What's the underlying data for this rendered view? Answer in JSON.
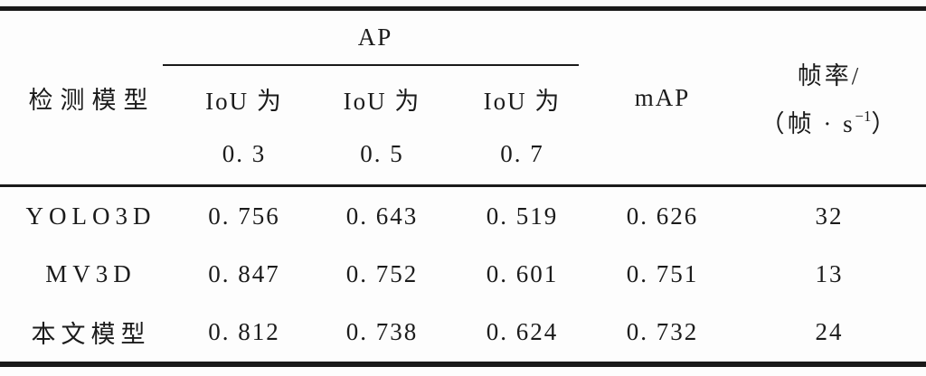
{
  "table": {
    "header": {
      "model": "检测模型",
      "ap_group": "AP",
      "iou_cols": [
        {
          "line1": "IoU 为",
          "line2": "0. 3"
        },
        {
          "line1": "IoU 为",
          "line2": "0. 5"
        },
        {
          "line1": "IoU 为",
          "line2": "0. 7"
        }
      ],
      "map": "mAP",
      "fps": {
        "line1": "帧率/",
        "unit_open": "（帧 · s",
        "unit_sup": "−1",
        "unit_close": "）"
      }
    },
    "rows": [
      {
        "model": "YOLO3D",
        "iou03": "0. 756",
        "iou05": "0. 643",
        "iou07": "0. 519",
        "map": "0. 626",
        "fps": "32"
      },
      {
        "model": "MV3D",
        "iou03": "0. 847",
        "iou05": "0. 752",
        "iou07": "0. 601",
        "map": "0. 751",
        "fps": "13"
      },
      {
        "model": "本文模型",
        "iou03": "0. 812",
        "iou05": "0. 738",
        "iou07": "0. 624",
        "map": "0. 732",
        "fps": "24"
      }
    ]
  },
  "colors": {
    "text": "#1b1b1b",
    "rule": "#1a1a1a",
    "background": "#fdfdfd"
  }
}
